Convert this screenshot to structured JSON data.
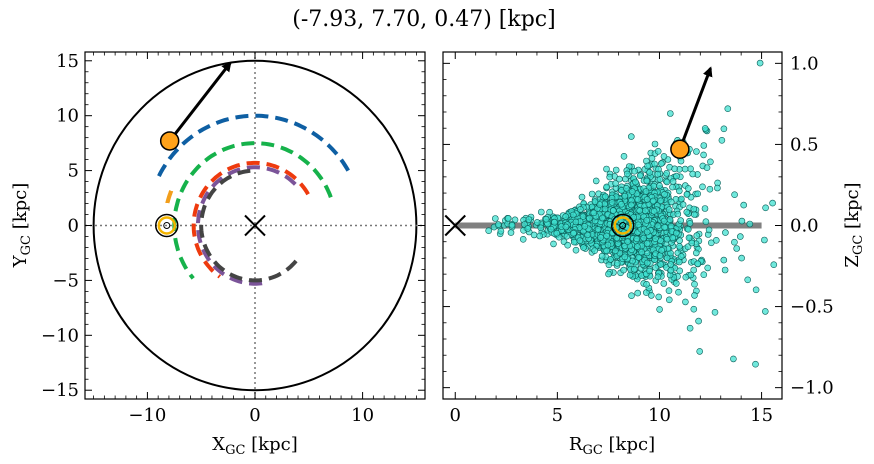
{
  "figure": {
    "title": "(-7.93, 7.70, 0.47) [kpc]"
  },
  "chart_data": [
    {
      "type": "line",
      "panel": "left",
      "xlabel": "X",
      "xlabel_sub": "GC",
      "xlabel_unit": " [kpc]",
      "ylabel": "Y",
      "ylabel_sub": "GC",
      "ylabel_unit": " [kpc]",
      "xlim": [
        -15.8,
        15.8
      ],
      "ylim": [
        -15.8,
        15.8
      ],
      "xticks": [
        -10,
        0,
        10
      ],
      "yticks": [
        -15,
        -10,
        -5,
        0,
        5,
        10,
        15
      ],
      "xtick_labels": [
        "−10",
        "0",
        "10"
      ],
      "ytick_labels": [
        "−15",
        "−10",
        "−5",
        "0",
        "5",
        "10",
        "15"
      ],
      "boundary_circle_radius": 15,
      "reference_lines": {
        "x": 0,
        "y": 0,
        "style": "dotted",
        "color": "#777777"
      },
      "galactic_center_marker": {
        "x": 0,
        "y": 0,
        "symbol": "x"
      },
      "sun_marker": {
        "x": -8.2,
        "y": 0,
        "color": "#f4b400"
      },
      "arms": [
        {
          "color": "#0e5fa3",
          "radius": 10.0,
          "theta_start_deg": 30,
          "theta_end_deg": 155
        },
        {
          "color": "#16b24b",
          "radius": 7.5,
          "theta_start_deg": 20,
          "theta_end_deg": 220
        },
        {
          "color": "#f29e1b",
          "radius": 8.4,
          "theta_start_deg": 158,
          "theta_end_deg": 168
        },
        {
          "color": "#ee3a0e",
          "radius": 5.7,
          "theta_start_deg": 30,
          "theta_end_deg": 235
        },
        {
          "color": "#7b5499",
          "radius": 5.3,
          "theta_start_deg": 45,
          "theta_end_deg": 280
        },
        {
          "color": "#444444",
          "radius": 5.0,
          "theta_start_deg": 95,
          "theta_end_deg": 320
        }
      ],
      "star_position": {
        "x": -7.93,
        "y": 7.7,
        "color": "#ffa21a"
      },
      "velocity_arrow": {
        "from": [
          -7.93,
          7.7
        ],
        "to": [
          -2.3,
          14.8
        ]
      }
    },
    {
      "type": "scatter",
      "panel": "right",
      "xlabel": "R",
      "xlabel_sub": "GC",
      "xlabel_unit": " [kpc]",
      "ylabel": "Z",
      "ylabel_sub": "GC",
      "ylabel_unit": " [kpc]",
      "xlim": [
        -0.6,
        16.0
      ],
      "ylim": [
        -1.07,
        1.07
      ],
      "xticks": [
        0,
        5,
        10,
        15
      ],
      "yticks": [
        -1.0,
        -0.5,
        0.0,
        0.5,
        1.0
      ],
      "xtick_labels": [
        "0",
        "5",
        "10",
        "15"
      ],
      "ytick_labels": [
        "−1.0",
        "−0.5",
        "0.0",
        "0.5",
        "1.0"
      ],
      "yaxis_position": "right",
      "disk_line": {
        "x": [
          0,
          15
        ],
        "y": 0,
        "color": "#808080"
      },
      "galactic_center_marker": {
        "x": 0,
        "y": 0,
        "symbol": "x"
      },
      "sun_marker": {
        "x": 8.2,
        "y": 0,
        "color": "#f4b400"
      },
      "points_color": "#40e0d0",
      "points_count": 2000,
      "points_note": "dense cloud centered near R=8.2 kpc, Z spread widening with R",
      "star_position": {
        "x": 11.0,
        "y": 0.47,
        "color": "#ffa21a"
      },
      "velocity_arrow": {
        "from": [
          11.0,
          0.47
        ],
        "to": [
          12.5,
          0.97
        ]
      }
    }
  ]
}
